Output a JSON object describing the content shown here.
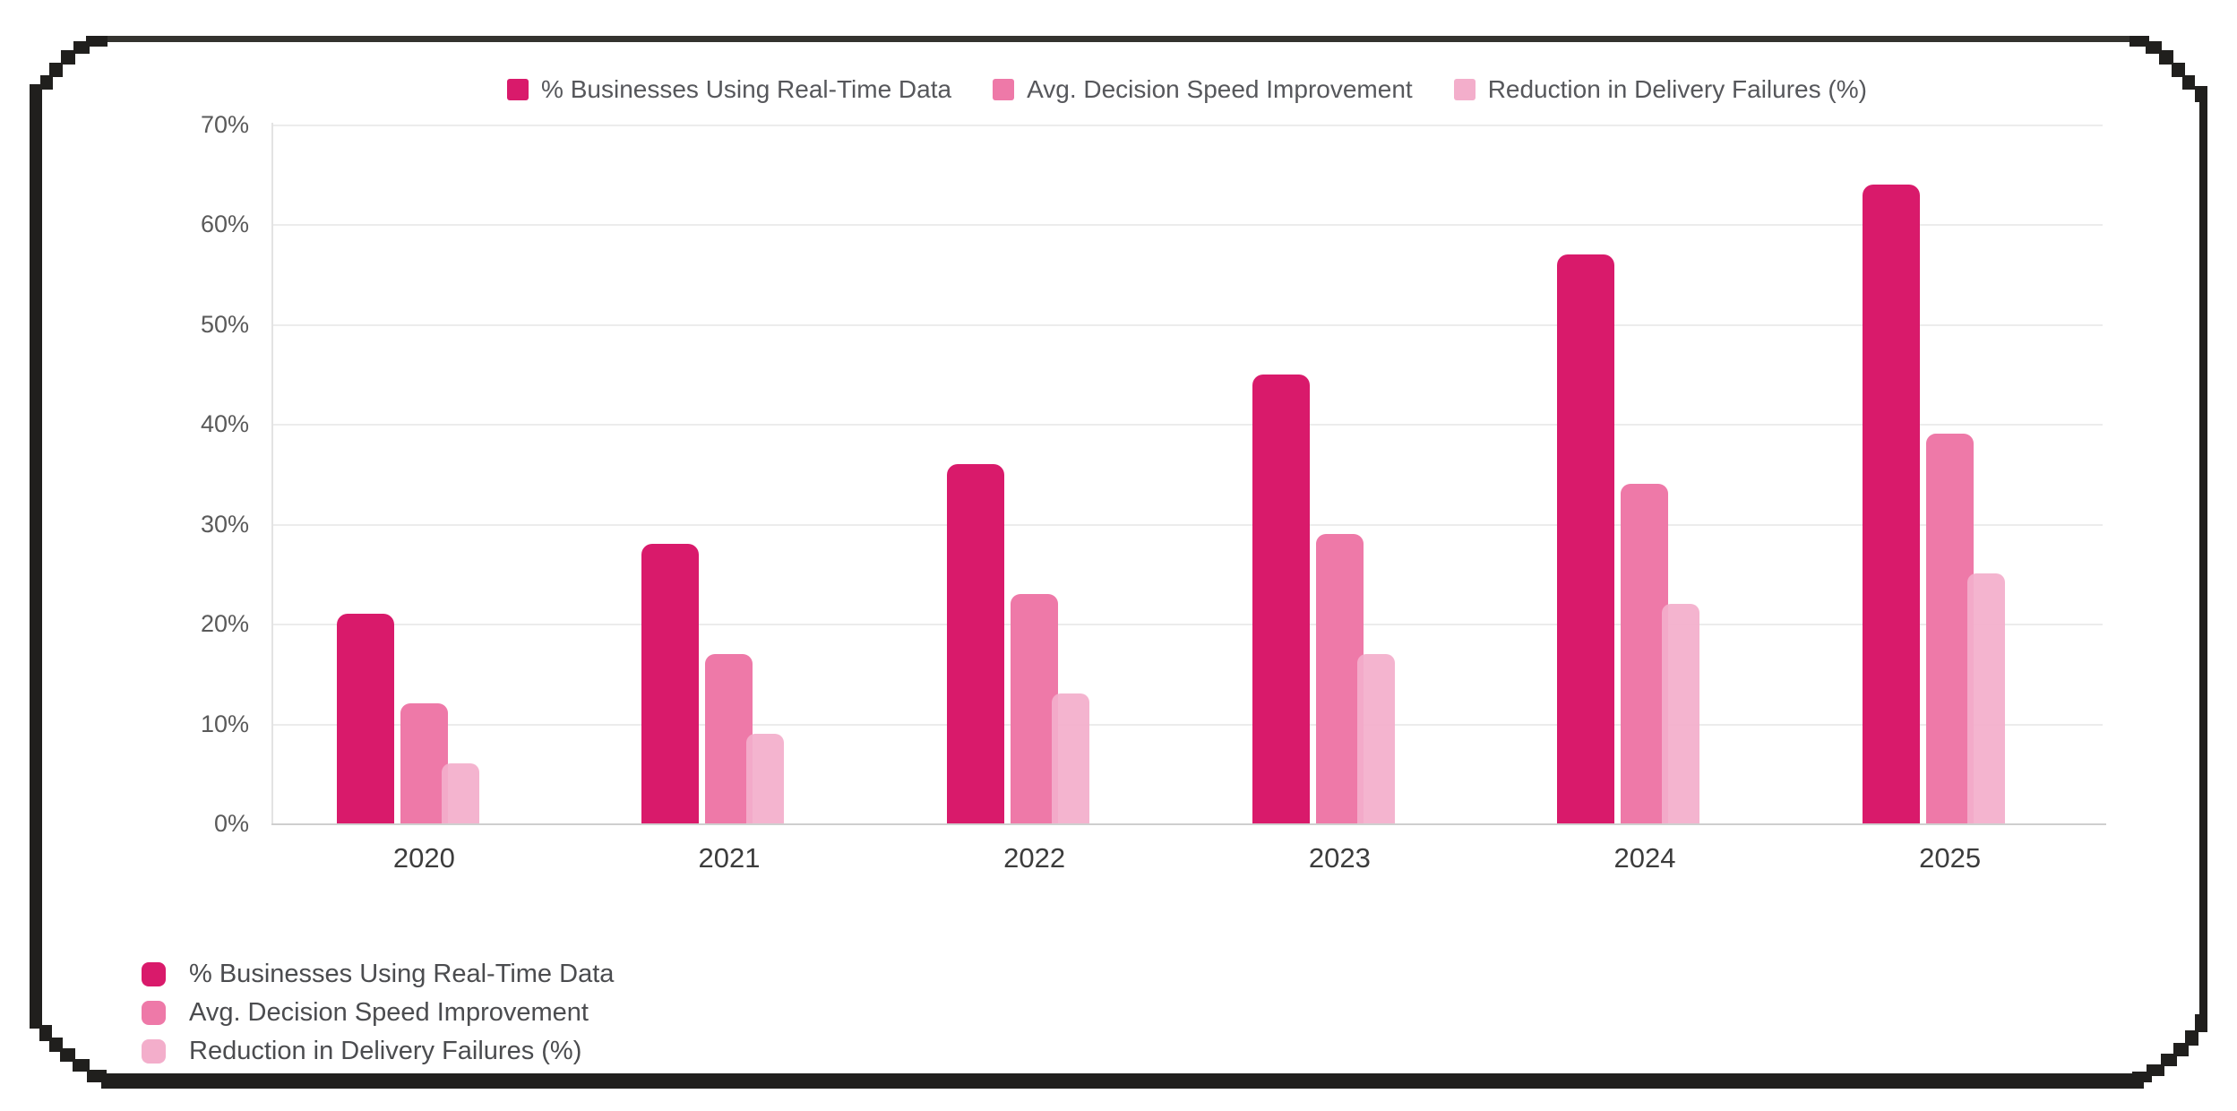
{
  "chart_data": {
    "type": "bar",
    "title": "",
    "categories": [
      "2020",
      "2021",
      "2022",
      "2023",
      "2024",
      "2025"
    ],
    "series": [
      {
        "name": "% Businesses Using Real-Time Data",
        "color": "#D91A6B",
        "values": [
          21,
          28,
          36,
          45,
          57,
          64
        ]
      },
      {
        "name": "Avg. Decision Speed Improvement",
        "color": "#EE79A8",
        "values": [
          12,
          17,
          23,
          29,
          34,
          39
        ]
      },
      {
        "name": "Reduction in Delivery Failures (%)",
        "color": "#F3AECB",
        "values": [
          6,
          9,
          13,
          17,
          22,
          25
        ]
      }
    ],
    "xlabel": "",
    "ylabel": "",
    "ylim": [
      0,
      70
    ],
    "ytick_step": 10,
    "ytick_format": "percent",
    "grid": true,
    "legend_positions": [
      "top-center",
      "bottom-left"
    ]
  },
  "palette": {
    "frame": "#201F1D",
    "grid": "#ECECEC",
    "axis_x": "#CFCFCF",
    "axis_y": "#E3E3E3",
    "tick_text": "#5A5A5A",
    "category_text": "#3C3C3C",
    "legend_text": "#56575B"
  }
}
